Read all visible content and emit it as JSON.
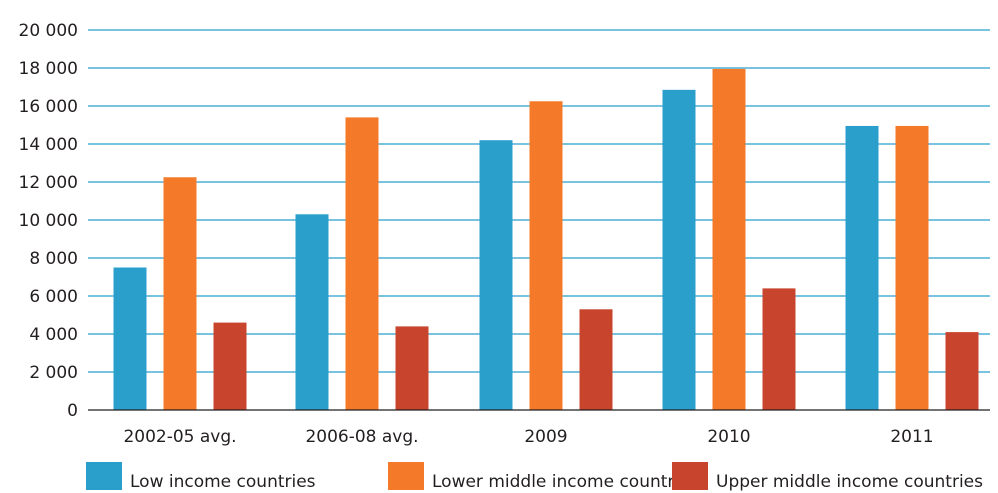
{
  "chart_data": {
    "type": "bar",
    "categories": [
      "2002-05 avg.",
      "2006-08 avg.",
      "2009",
      "2010",
      "2011"
    ],
    "series": [
      {
        "name": "Low income countries",
        "color": "#2a9fcc",
        "values": [
          7500,
          10300,
          14200,
          16850,
          14950
        ]
      },
      {
        "name": "Lower middle income countries",
        "color": "#f47a29",
        "values": [
          12250,
          15400,
          16250,
          17950,
          14950
        ]
      },
      {
        "name": "Upper middle income countries",
        "color": "#c8442c",
        "values": [
          4600,
          4400,
          5300,
          6400,
          4100
        ]
      }
    ],
    "y_ticks": [
      "0",
      "2 000",
      "4 000",
      "6 000",
      "8 000",
      "10 000",
      "12 000",
      "14 000",
      "16 000",
      "18 000",
      "20 000"
    ],
    "ylim": [
      0,
      20000
    ],
    "grid": true,
    "grid_color": "#2a9fcc",
    "legend_position": "bottom"
  }
}
